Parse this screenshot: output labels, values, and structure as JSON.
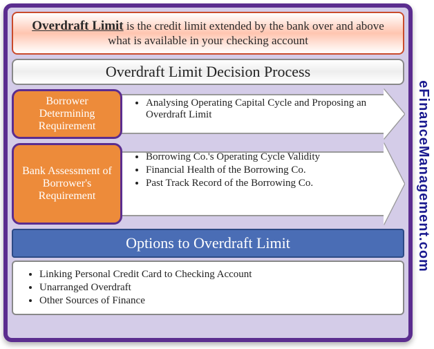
{
  "watermark": "eFinanceManagement.com",
  "definition": {
    "term": "Overdraft Limit",
    "rest": " is the credit limit extended by the bank over and above what is available in your checking account"
  },
  "subtitle": "Overdraft Limit Decision Process",
  "rows": [
    {
      "label": "Borrower Determining Requirement",
      "items": [
        "Analysing Operating Capital Cycle and Proposing an Overdraft Limit"
      ]
    },
    {
      "label": "Bank Assessment of Borrower's Requirement",
      "items": [
        "Borrowing Co.'s Operating Cycle Validity",
        "Financial Health of the Borrowing Co.",
        "Past Track Record of the Borrowing Co."
      ]
    }
  ],
  "options": {
    "header": "Options to Overdraft Limit",
    "items": [
      "Linking Personal Credit Card to Checking Account",
      "Unarranged Overdraft",
      "Other Sources of Finance"
    ]
  },
  "colors": {
    "frame_border": "#5b2d8f",
    "frame_bg": "#d4cce8",
    "label_bg": "#ed8b3a",
    "options_header_bg": "#4a6db5",
    "watermark_color": "#1a1a8f"
  }
}
